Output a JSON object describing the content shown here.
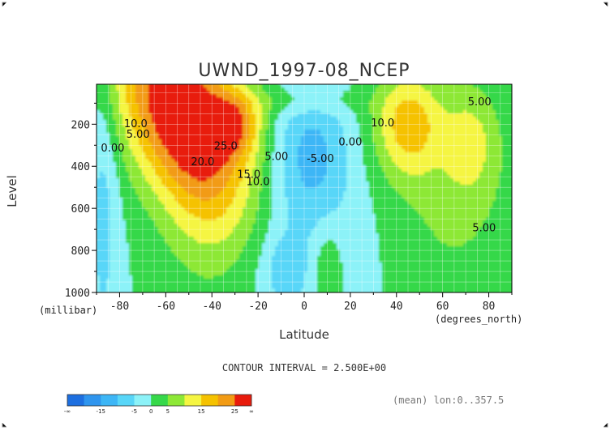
{
  "chart_data": {
    "type": "contour",
    "title": "UWND_1997-08_NCEP",
    "xlabel": "Latitude",
    "ylabel": "Level",
    "x_unit": "(degrees_north)",
    "y_unit": "(millibar)",
    "xlim": [
      -90,
      90
    ],
    "ylim": [
      1000,
      10
    ],
    "y_inverted": true,
    "x_ticks": [
      -80,
      -60,
      -40,
      -20,
      0,
      20,
      40,
      60,
      80
    ],
    "y_ticks": [
      200,
      400,
      600,
      800,
      1000
    ],
    "contour_interval_text": "CONTOUR INTERVAL = 2.500E+00",
    "footer_note": "(mean) lon:0..357.5",
    "colorbar": {
      "levels": [
        -20,
        -15,
        -10,
        -5,
        0,
        5,
        10,
        15,
        20,
        25
      ],
      "tick_labels": [
        "-∞",
        "-15",
        "-5",
        "0",
        "5",
        "15",
        "25",
        "∞"
      ],
      "colors": [
        "#1d6fe0",
        "#2f95ee",
        "#3db6f6",
        "#58d6f8",
        "#8cf2f8",
        "#36d84a",
        "#8de836",
        "#f5f542",
        "#f5c200",
        "#f29b14",
        "#e81b0c"
      ]
    },
    "contour_labels": [
      {
        "text": "10.0",
        "lat": -73,
        "lev": 215
      },
      {
        "text": "5.00",
        "lat": -72,
        "lev": 265
      },
      {
        "text": "0.00",
        "lat": -83,
        "lev": 330
      },
      {
        "text": "20.0",
        "lat": -44,
        "lev": 395
      },
      {
        "text": "25.0",
        "lat": -34,
        "lev": 320
      },
      {
        "text": "15.0",
        "lat": -24,
        "lev": 455
      },
      {
        "text": "10.0",
        "lat": -20,
        "lev": 490
      },
      {
        "text": "5.00",
        "lat": -12,
        "lev": 370
      },
      {
        "text": "-5.00",
        "lat": 7,
        "lev": 380
      },
      {
        "text": "0.00",
        "lat": 20,
        "lev": 300
      },
      {
        "text": "10.0",
        "lat": 34,
        "lev": 210
      },
      {
        "text": "5.00",
        "lat": 76,
        "lev": 110
      },
      {
        "text": "5.00",
        "lat": 78,
        "lev": 710
      }
    ],
    "field_features": [
      {
        "name": "southern-jet-core",
        "lat": -53,
        "lev": 120,
        "value": 27.5
      },
      {
        "name": "secondary-sh-core",
        "lat": -30,
        "lev": 200,
        "value": 27.5
      },
      {
        "name": "northern-jet-core",
        "lat": 45,
        "lev": 200,
        "value": 15
      },
      {
        "name": "northern-secondary-max",
        "lat": 72,
        "lev": 280,
        "value": 12.5
      },
      {
        "name": "tropical-easterlies",
        "lat": 5,
        "lev": 350,
        "value": -7.5
      }
    ]
  }
}
